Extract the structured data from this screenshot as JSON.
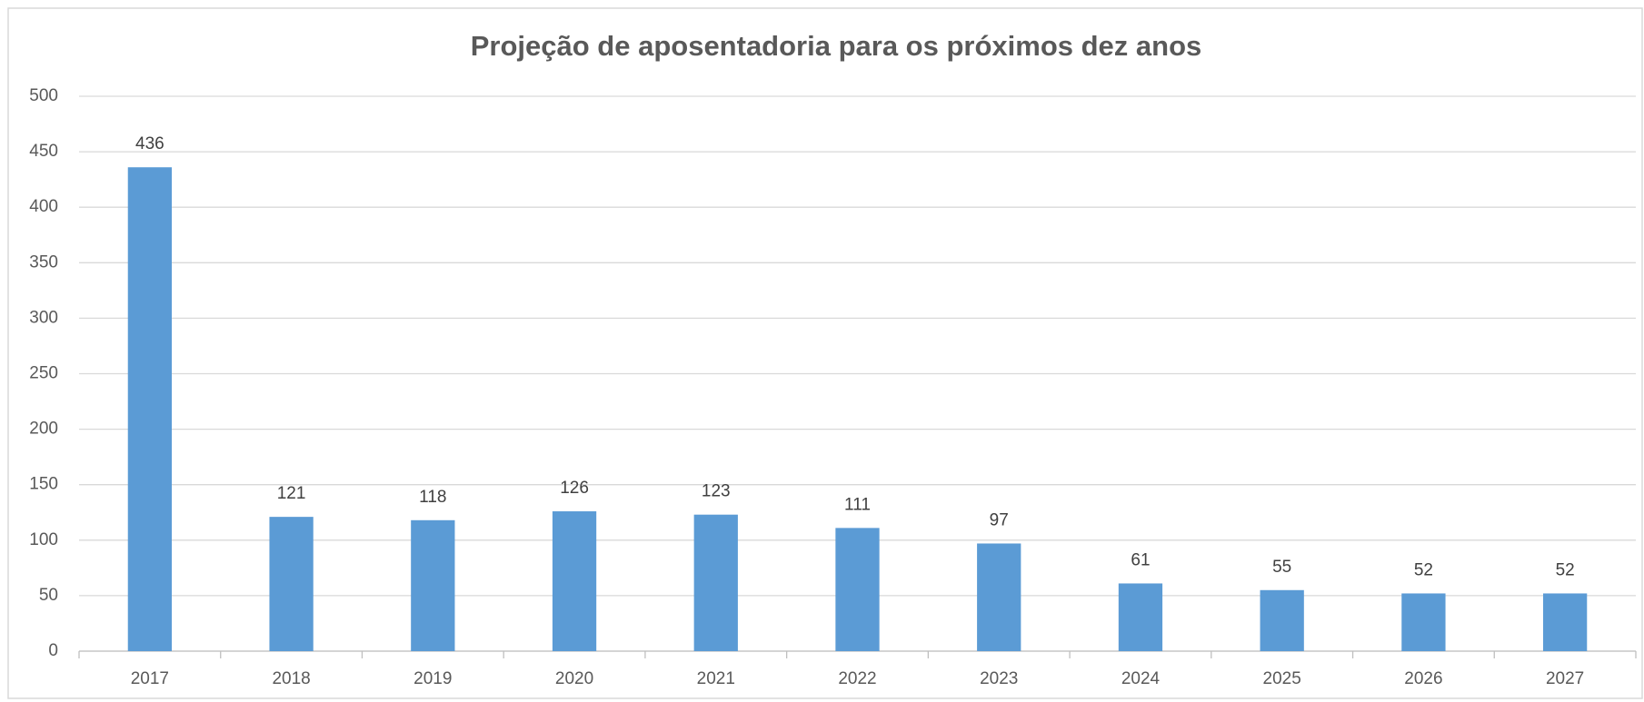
{
  "chart_data": {
    "type": "bar",
    "title": "Projeção de aposentadoria para os próximos dez anos",
    "categories": [
      "2017",
      "2018",
      "2019",
      "2020",
      "2021",
      "2022",
      "2023",
      "2024",
      "2025",
      "2026",
      "2027"
    ],
    "values": [
      436,
      121,
      118,
      126,
      123,
      111,
      97,
      61,
      55,
      52,
      52
    ],
    "color": "#5b9bd5",
    "ylim": [
      0,
      500
    ],
    "yticks": [
      0,
      50,
      100,
      150,
      200,
      250,
      300,
      350,
      400,
      450,
      500
    ],
    "grid": true,
    "data_labels": true
  }
}
